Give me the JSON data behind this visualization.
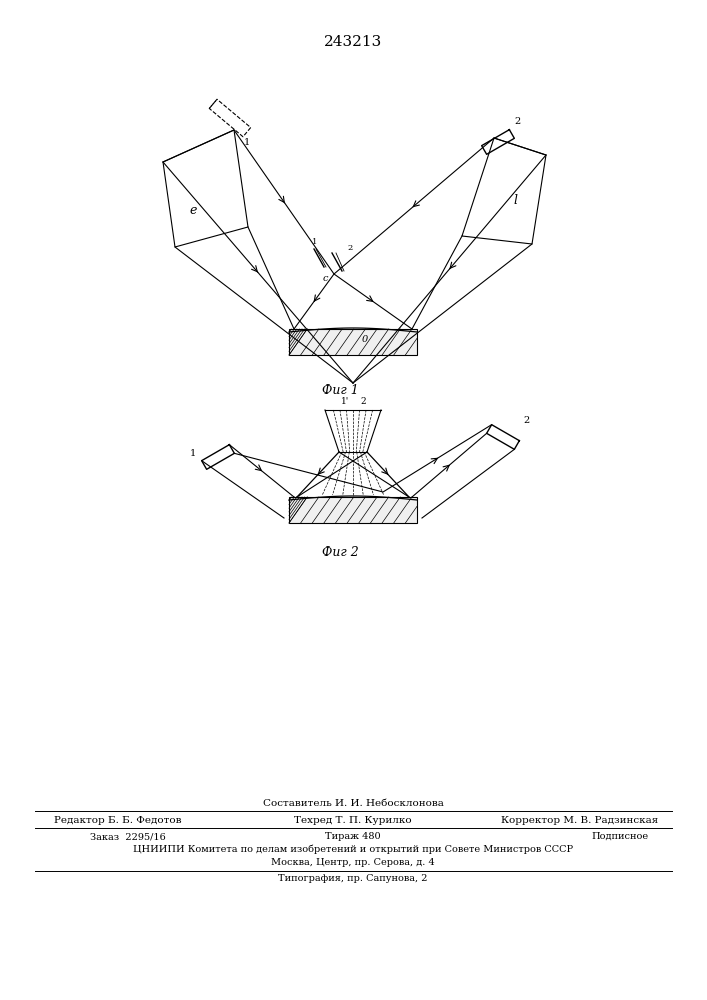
{
  "title": "243213",
  "title_fontsize": 11,
  "fig1_caption": "Фиг 1",
  "fig2_caption": "Фиг 2",
  "background_color": "#ffffff",
  "line_color": "#000000",
  "footer_lines": [
    "Составитель И. И. Небосклонова",
    "Редактор Б. Б. Федотов",
    "Техред Т. П. Курилко",
    "Корректор М. В. Радзинская",
    "Заказ  2295/16",
    "Тираж 480",
    "Подписное",
    "ЦНИИПИ Комитета по делам изобретений и открытий при Совете Министров СССР",
    "Москва, Центр, пр. Серова, д. 4",
    "Типография, пр. Сапунова, 2"
  ]
}
